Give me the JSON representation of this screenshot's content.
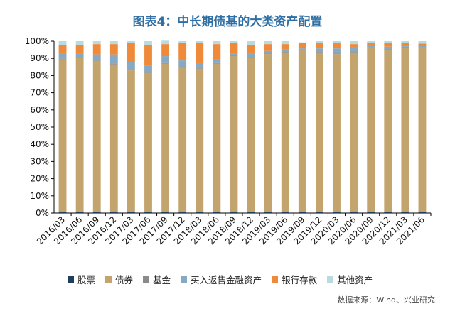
{
  "title": "图表4：中长期债基的大类资产配置",
  "source": "数据来源：Wind、兴业研究",
  "chart_data": {
    "type": "bar",
    "stacked": true,
    "categories": [
      "2016/03",
      "2016/06",
      "2016/09",
      "2016/12",
      "2017/03",
      "2017/06",
      "2017/09",
      "2017/12",
      "2018/03",
      "2018/06",
      "2018/09",
      "2018/12",
      "2019/03",
      "2019/06",
      "2019/09",
      "2019/12",
      "2020/03",
      "2020/06",
      "2020/09",
      "2020/12",
      "2021/03",
      "2021/06"
    ],
    "ylim": [
      0,
      100
    ],
    "ytick_labels": [
      "0%",
      "10%",
      "20%",
      "30%",
      "40%",
      "50%",
      "60%",
      "70%",
      "80%",
      "90%",
      "100%"
    ],
    "grid": false,
    "legend_position": "bottom",
    "series": [
      {
        "name": "股票",
        "color": "#1f3e5e",
        "values": [
          0.5,
          0.5,
          0.5,
          0.5,
          0.5,
          0.5,
          0.5,
          0.5,
          0.5,
          0.5,
          0.5,
          0.5,
          0.5,
          0.5,
          0.5,
          0.5,
          0.5,
          0.5,
          0.5,
          0.5,
          0.5,
          0.5
        ]
      },
      {
        "name": "债券",
        "color": "#c4a46d",
        "values": [
          89,
          90,
          88,
          86,
          82.5,
          81,
          86.5,
          84.5,
          83.5,
          86.5,
          91,
          90,
          92,
          93,
          94,
          93,
          92,
          93,
          95.5,
          94.5,
          96,
          95.5
        ]
      },
      {
        "name": "基金",
        "color": "#8a8a8a",
        "values": [
          0.3,
          0.3,
          0.3,
          0.3,
          0.3,
          0.3,
          0.3,
          0.3,
          0.3,
          0.3,
          0.3,
          0.3,
          0.3,
          0.3,
          0.3,
          0.3,
          0.3,
          0.3,
          0.3,
          0.3,
          0.3,
          0.3
        ]
      },
      {
        "name": "买入返售金融资产",
        "color": "#87a9c2",
        "values": [
          3,
          2,
          3.5,
          5.5,
          4.5,
          4,
          4,
          3.5,
          2.5,
          2,
          1,
          2,
          1.5,
          1.5,
          1,
          2,
          3,
          2.5,
          1,
          1.5,
          0.8,
          0.8
        ]
      },
      {
        "name": "银行存款",
        "color": "#ee8a3a",
        "values": [
          5,
          5,
          6,
          6,
          11,
          12,
          7,
          10,
          12,
          9,
          6,
          5,
          4,
          3,
          3,
          3,
          3,
          2,
          1.5,
          2,
          1.5,
          1.5
        ]
      },
      {
        "name": "其他资产",
        "color": "#b9dbe0",
        "values": [
          2.2,
          2.2,
          1.7,
          1.7,
          1.2,
          2.2,
          2,
          1.2,
          1.2,
          1.7,
          1.2,
          2.2,
          1.7,
          1.7,
          0.5,
          1.2,
          1.2,
          1.7,
          1.2,
          1.2,
          0.9,
          1.4
        ]
      }
    ]
  }
}
